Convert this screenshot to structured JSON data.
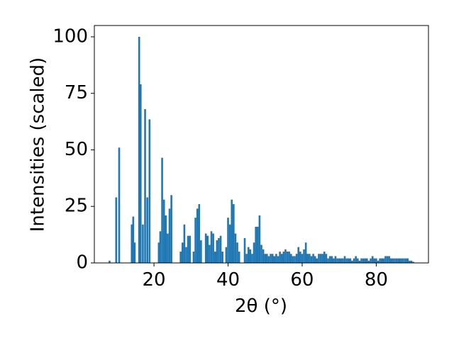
{
  "chart_data": {
    "type": "bar",
    "xlabel": "2θ (°)",
    "ylabel": "Intensities (scaled)",
    "color": "#1f77b4",
    "x": [
      8.0,
      9.8,
      10.6,
      14.0,
      14.4,
      14.8,
      16.0,
      16.4,
      17.0,
      17.6,
      18.2,
      18.8,
      21.3,
      21.7,
      22.2,
      22.7,
      23.2,
      23.7,
      24.2,
      24.7,
      27.2,
      27.7,
      28.2,
      28.7,
      29.2,
      29.7,
      30.7,
      31.2,
      31.7,
      32.2,
      32.7,
      34.0,
      34.5,
      35.0,
      35.5,
      36.0,
      36.5,
      37.0,
      37.5,
      38.0,
      38.5,
      39.5,
      40.0,
      40.5,
      41.0,
      41.5,
      42.0,
      42.5,
      43.0,
      44.5,
      45.0,
      45.5,
      46.0,
      46.5,
      47.0,
      47.5,
      48.0,
      48.5,
      49.0,
      49.5,
      50.0,
      50.5,
      51.0,
      51.5,
      52.0,
      52.5,
      53.0,
      53.5,
      54.0,
      54.5,
      55.0,
      55.5,
      56.0,
      56.5,
      57.0,
      57.5,
      58.0,
      58.5,
      59.0,
      59.5,
      60.0,
      60.5,
      61.0,
      61.5,
      62.0,
      62.5,
      63.0,
      63.5,
      64.0,
      64.5,
      65.0,
      65.5,
      66.0,
      66.5,
      67.0,
      67.5,
      68.0,
      68.5,
      69.0,
      69.5,
      70.0,
      70.5,
      71.0,
      71.5,
      72.0,
      72.5,
      73.0,
      73.5,
      74.0,
      74.5,
      75.0,
      75.5,
      76.0,
      76.5,
      77.0,
      77.5,
      78.0,
      78.5,
      79.0,
      79.5,
      80.0,
      80.5,
      81.0,
      81.5,
      82.0,
      82.5,
      83.0,
      83.5,
      84.0,
      84.5,
      85.0,
      85.5,
      86.0,
      86.5,
      87.0,
      87.5,
      88.0,
      88.5,
      89.0,
      89.5,
      90.0
    ],
    "values": [
      1,
      29,
      51,
      17,
      20.5,
      9,
      100,
      79,
      17,
      68,
      29,
      63.5,
      9,
      14,
      46.5,
      28,
      21,
      13,
      24,
      30,
      5,
      9,
      17,
      7,
      12,
      12,
      5,
      20,
      24,
      26,
      10,
      13,
      12,
      8,
      14,
      13,
      5,
      10,
      11,
      12,
      5,
      7,
      20,
      17,
      28,
      26,
      13,
      9,
      5,
      11,
      4,
      7,
      6,
      4,
      9,
      16,
      16,
      21,
      8,
      6,
      4,
      4,
      3,
      4,
      4,
      3,
      4,
      3,
      5,
      4,
      5,
      6,
      5,
      5,
      4,
      3,
      3,
      4,
      7,
      5,
      4,
      6,
      9,
      4,
      4,
      3,
      4,
      3,
      2,
      4,
      4,
      4,
      5,
      4,
      2,
      3,
      3,
      2,
      3,
      2,
      2,
      2,
      2,
      3,
      2,
      2,
      2,
      1,
      2,
      3,
      2,
      1,
      2,
      2,
      2,
      2,
      1,
      2,
      3,
      2,
      2,
      1,
      2,
      2,
      2,
      3,
      3,
      3,
      2,
      2,
      2,
      2,
      2,
      2,
      2,
      2,
      2,
      2,
      1,
      1,
      0.5
    ],
    "xlim": [
      3.9,
      94.1
    ],
    "ylim": [
      0,
      105
    ],
    "xticks": [
      20,
      40,
      60,
      80
    ],
    "yticks": [
      0,
      25,
      50,
      75,
      100
    ]
  }
}
